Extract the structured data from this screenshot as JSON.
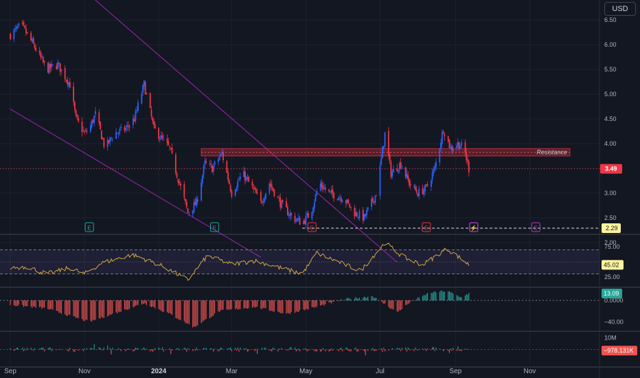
{
  "currency_label": "USD",
  "colors": {
    "background": "#131722",
    "grid": "#1e222d",
    "up": "#2962ff",
    "down": "#f23645",
    "trendline": "#9c27b0",
    "rsi_line": "#d4a94a",
    "rsi_band": "#7e57c2",
    "resistance_box": "#f23645",
    "osc_up": "#26a69a",
    "osc_down": "#ef5350",
    "price_label": "#f23645",
    "support_label": "#fff59d"
  },
  "chart_data": [
    {
      "type": "candlestick",
      "panel": "price",
      "y_ticks": [
        "6.50",
        "6.00",
        "5.50",
        "5.00",
        "4.50",
        "4.00",
        "3.50",
        "3.00",
        "2.50",
        "2.00"
      ],
      "ylim": [
        1.9,
        6.6
      ],
      "x_ticks": [
        "Sep",
        "Nov",
        "2024",
        "Mar",
        "May",
        "Jul",
        "Sep",
        "Nov"
      ],
      "last_price": "3.49",
      "support_value": "2.29",
      "resistance_label": "Resistance",
      "resistance_zone": [
        3.75,
        3.9
      ],
      "price_path": [
        [
          "2023-09-01",
          6.2
        ],
        [
          "2023-09-10",
          6.4
        ],
        [
          "2023-09-20",
          6.0
        ],
        [
          "2023-10-01",
          5.5
        ],
        [
          "2023-10-10",
          5.6
        ],
        [
          "2023-10-20",
          5.2
        ],
        [
          "2023-10-25",
          4.5
        ],
        [
          "2023-11-01",
          4.2
        ],
        [
          "2023-11-05",
          4.3
        ],
        [
          "2023-11-10",
          4.6
        ],
        [
          "2023-11-18",
          3.9
        ],
        [
          "2023-11-25",
          4.2
        ],
        [
          "2023-12-05",
          4.3
        ],
        [
          "2023-12-12",
          4.5
        ],
        [
          "2023-12-20",
          5.2
        ],
        [
          "2023-12-28",
          4.3
        ],
        [
          "2024-01-10",
          3.9
        ],
        [
          "2024-01-18",
          3.2
        ],
        [
          "2024-01-25",
          2.6
        ],
        [
          "2024-02-01",
          2.8
        ],
        [
          "2024-02-08",
          3.6
        ],
        [
          "2024-02-14",
          3.5
        ],
        [
          "2024-02-22",
          3.8
        ],
        [
          "2024-03-01",
          3.0
        ],
        [
          "2024-03-10",
          3.4
        ],
        [
          "2024-03-18",
          3.1
        ],
        [
          "2024-03-25",
          2.8
        ],
        [
          "2024-04-01",
          3.2
        ],
        [
          "2024-04-10",
          2.8
        ],
        [
          "2024-04-20",
          2.5
        ],
        [
          "2024-04-28",
          2.4
        ],
        [
          "2024-05-05",
          2.6
        ],
        [
          "2024-05-12",
          3.2
        ],
        [
          "2024-05-20",
          3.0
        ],
        [
          "2024-06-01",
          2.9
        ],
        [
          "2024-06-10",
          2.6
        ],
        [
          "2024-06-18",
          2.5
        ],
        [
          "2024-06-28",
          3.0
        ],
        [
          "2024-07-05",
          4.2
        ],
        [
          "2024-07-10",
          3.4
        ],
        [
          "2024-07-18",
          3.6
        ],
        [
          "2024-07-25",
          3.2
        ],
        [
          "2024-08-01",
          3.0
        ],
        [
          "2024-08-08",
          3.1
        ],
        [
          "2024-08-15",
          3.5
        ],
        [
          "2024-08-22",
          4.3
        ],
        [
          "2024-08-28",
          3.9
        ],
        [
          "2024-09-03",
          4.0
        ],
        [
          "2024-09-08",
          3.9
        ],
        [
          "2024-09-12",
          3.49
        ]
      ],
      "events": [
        {
          "label": "E",
          "date": "2023-11-05",
          "color": "#26a69a"
        },
        {
          "label": "E",
          "date": "2024-02-16",
          "color": "#26a69a"
        },
        {
          "label": "E",
          "date": "2024-05-06",
          "color": "#f23645"
        },
        {
          "label": "E",
          "date": "2024-08-08",
          "color": "#f23645"
        },
        {
          "label": "⚡",
          "date": "2024-09-16",
          "color": "#e040fb"
        },
        {
          "label": "E",
          "date": "2024-11-06",
          "color": "#ab47bc"
        }
      ],
      "trendlines": [
        {
          "from": [
            "2023-09-01",
            8.4
          ],
          "to": [
            "2024-07-15",
            1.6
          ]
        },
        {
          "from": [
            "2023-09-01",
            4.7
          ],
          "to": [
            "2024-03-25",
            1.7
          ]
        }
      ]
    },
    {
      "type": "line",
      "panel": "rsi",
      "y_ticks": [
        "75.00",
        "25.00"
      ],
      "ylim": [
        10,
        90
      ],
      "levels": [
        70,
        30
      ],
      "band": [
        30,
        70
      ],
      "midline": 50,
      "last_value": "45.02",
      "series": [
        [
          "2023-09-01",
          40
        ],
        [
          "2023-09-15",
          42
        ],
        [
          "2023-10-01",
          30
        ],
        [
          "2023-10-20",
          40
        ],
        [
          "2023-11-01",
          30
        ],
        [
          "2023-11-15",
          48
        ],
        [
          "2023-12-10",
          62
        ],
        [
          "2023-12-20",
          55
        ],
        [
          "2024-01-05",
          42
        ],
        [
          "2024-01-25",
          20
        ],
        [
          "2024-02-10",
          60
        ],
        [
          "2024-03-01",
          46
        ],
        [
          "2024-03-20",
          52
        ],
        [
          "2024-04-10",
          40
        ],
        [
          "2024-04-28",
          30
        ],
        [
          "2024-05-10",
          65
        ],
        [
          "2024-05-25",
          52
        ],
        [
          "2024-06-15",
          35
        ],
        [
          "2024-07-05",
          82
        ],
        [
          "2024-07-20",
          58
        ],
        [
          "2024-08-05",
          45
        ],
        [
          "2024-08-25",
          72
        ],
        [
          "2024-09-05",
          56
        ],
        [
          "2024-09-12",
          45.02
        ]
      ]
    },
    {
      "type": "histogram",
      "panel": "oscillator_1",
      "y_ticks": [
        "0.0000",
        "−40.00"
      ],
      "ylim": [
        -55,
        22
      ],
      "last_value": "13.09"
    },
    {
      "type": "histogram",
      "panel": "oscillator_2",
      "y_ticks": [
        "10M"
      ],
      "ylim": [
        -14,
        14
      ],
      "last_value": "−978.131K"
    }
  ]
}
